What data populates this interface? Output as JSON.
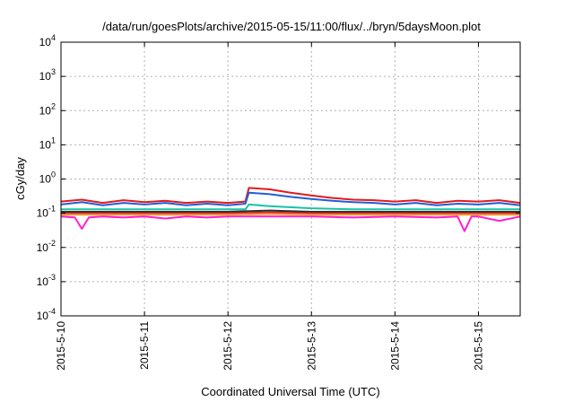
{
  "chart_data": {
    "type": "line",
    "title": "/data/run/goesPlots/archive/2015-05-15/11:00/flux/../bryn/5daysMoon.plot",
    "xlabel": "Coordinated Universal Time (UTC)",
    "ylabel": "cGy/day",
    "yscale": "log",
    "ylim": [
      0.0001,
      10000
    ],
    "xlim": [
      "2015-05-10",
      "2015-05-15 12:00"
    ],
    "grid": true,
    "legend": "none",
    "y_ticks": [
      {
        "mantissa": "10",
        "exp": "-4",
        "value": 0.0001
      },
      {
        "mantissa": "10",
        "exp": "-3",
        "value": 0.001
      },
      {
        "mantissa": "10",
        "exp": "-2",
        "value": 0.01
      },
      {
        "mantissa": "10",
        "exp": "-1",
        "value": 0.1
      },
      {
        "mantissa": "10",
        "exp": "0",
        "value": 1
      },
      {
        "mantissa": "10",
        "exp": "1",
        "value": 10
      },
      {
        "mantissa": "10",
        "exp": "2",
        "value": 100
      },
      {
        "mantissa": "10",
        "exp": "3",
        "value": 1000
      },
      {
        "mantissa": "10",
        "exp": "4",
        "value": 10000
      }
    ],
    "x_ticks": [
      "2015-5-10",
      "2015-5-11",
      "2015-5-12",
      "2015-5-13",
      "2015-5-14",
      "2015-5-15"
    ],
    "series": [
      {
        "color": "#e41a1c",
        "x": [
          "2015-05-10 00:00",
          "2015-05-10 06:00",
          "2015-05-10 12:00",
          "2015-05-10 18:00",
          "2015-05-11 00:00",
          "2015-05-11 06:00",
          "2015-05-11 12:00",
          "2015-05-11 18:00",
          "2015-05-12 00:00",
          "2015-05-12 05:00",
          "2015-05-12 06:00",
          "2015-05-12 12:00",
          "2015-05-12 18:00",
          "2015-05-13 00:00",
          "2015-05-13 06:00",
          "2015-05-13 12:00",
          "2015-05-13 18:00",
          "2015-05-14 00:00",
          "2015-05-14 06:00",
          "2015-05-14 12:00",
          "2015-05-14 18:00",
          "2015-05-15 00:00",
          "2015-05-15 06:00",
          "2015-05-15 12:00"
        ],
        "values": [
          0.22,
          0.25,
          0.2,
          0.24,
          0.21,
          0.23,
          0.2,
          0.22,
          0.2,
          0.22,
          0.55,
          0.5,
          0.4,
          0.33,
          0.28,
          0.25,
          0.24,
          0.22,
          0.24,
          0.2,
          0.23,
          0.22,
          0.24,
          0.2
        ]
      },
      {
        "color": "#1f5fd6",
        "x": [
          "2015-05-10 00:00",
          "2015-05-10 06:00",
          "2015-05-10 12:00",
          "2015-05-10 18:00",
          "2015-05-11 00:00",
          "2015-05-11 06:00",
          "2015-05-11 12:00",
          "2015-05-11 18:00",
          "2015-05-12 00:00",
          "2015-05-12 05:00",
          "2015-05-12 06:00",
          "2015-05-12 12:00",
          "2015-05-12 18:00",
          "2015-05-13 00:00",
          "2015-05-13 06:00",
          "2015-05-13 12:00",
          "2015-05-13 18:00",
          "2015-05-14 00:00",
          "2015-05-14 06:00",
          "2015-05-14 12:00",
          "2015-05-14 18:00",
          "2015-05-15 00:00",
          "2015-05-15 06:00",
          "2015-05-15 12:00"
        ],
        "values": [
          0.18,
          0.21,
          0.17,
          0.2,
          0.18,
          0.2,
          0.17,
          0.19,
          0.17,
          0.19,
          0.4,
          0.36,
          0.3,
          0.26,
          0.23,
          0.21,
          0.2,
          0.18,
          0.2,
          0.17,
          0.19,
          0.18,
          0.2,
          0.17
        ]
      },
      {
        "color": "#17c3a6",
        "x": [
          "2015-05-10 00:00",
          "2015-05-10 12:00",
          "2015-05-11 00:00",
          "2015-05-11 12:00",
          "2015-05-12 00:00",
          "2015-05-12 05:00",
          "2015-05-12 06:00",
          "2015-05-12 12:00",
          "2015-05-13 00:00",
          "2015-05-13 12:00",
          "2015-05-14 00:00",
          "2015-05-14 12:00",
          "2015-05-15 00:00",
          "2015-05-15 12:00"
        ],
        "values": [
          0.13,
          0.13,
          0.13,
          0.13,
          0.13,
          0.13,
          0.18,
          0.16,
          0.14,
          0.13,
          0.13,
          0.13,
          0.13,
          0.13
        ]
      },
      {
        "color": "#2b2b2b",
        "x": [
          "2015-05-10 00:00",
          "2015-05-10 12:00",
          "2015-05-11 00:00",
          "2015-05-11 12:00",
          "2015-05-12 00:00",
          "2015-05-12 12:00",
          "2015-05-13 00:00",
          "2015-05-13 12:00",
          "2015-05-14 00:00",
          "2015-05-14 12:00",
          "2015-05-15 00:00",
          "2015-05-15 12:00"
        ],
        "values": [
          0.11,
          0.11,
          0.11,
          0.11,
          0.11,
          0.12,
          0.11,
          0.11,
          0.11,
          0.11,
          0.11,
          0.11
        ]
      },
      {
        "color": "#d62728",
        "x": [
          "2015-05-10 00:00",
          "2015-05-10 12:00",
          "2015-05-11 00:00",
          "2015-05-11 12:00",
          "2015-05-12 00:00",
          "2015-05-12 12:00",
          "2015-05-13 00:00",
          "2015-05-13 12:00",
          "2015-05-14 00:00",
          "2015-05-14 12:00",
          "2015-05-15 00:00",
          "2015-05-15 12:00"
        ],
        "values": [
          0.1,
          0.1,
          0.1,
          0.1,
          0.1,
          0.105,
          0.1,
          0.1,
          0.1,
          0.1,
          0.1,
          0.1
        ]
      },
      {
        "color": "#f2a23a",
        "x": [
          "2015-05-10 00:00",
          "2015-05-10 12:00",
          "2015-05-11 00:00",
          "2015-05-11 12:00",
          "2015-05-12 00:00",
          "2015-05-12 12:00",
          "2015-05-13 00:00",
          "2015-05-13 12:00",
          "2015-05-14 00:00",
          "2015-05-14 12:00",
          "2015-05-15 00:00",
          "2015-05-15 12:00"
        ],
        "values": [
          0.09,
          0.09,
          0.09,
          0.09,
          0.09,
          0.095,
          0.09,
          0.09,
          0.09,
          0.09,
          0.09,
          0.09
        ]
      },
      {
        "color": "#ff1fd2",
        "x": [
          "2015-05-10 00:00",
          "2015-05-10 04:00",
          "2015-05-10 06:00",
          "2015-05-10 08:00",
          "2015-05-10 12:00",
          "2015-05-10 18:00",
          "2015-05-11 00:00",
          "2015-05-11 06:00",
          "2015-05-11 12:00",
          "2015-05-11 18:00",
          "2015-05-12 00:00",
          "2015-05-12 12:00",
          "2015-05-13 00:00",
          "2015-05-13 12:00",
          "2015-05-14 00:00",
          "2015-05-14 12:00",
          "2015-05-14 18:00",
          "2015-05-14 20:00",
          "2015-05-14 22:00",
          "2015-05-15 00:00",
          "2015-05-15 06:00",
          "2015-05-15 12:00"
        ],
        "values": [
          0.08,
          0.075,
          0.035,
          0.075,
          0.08,
          0.075,
          0.08,
          0.07,
          0.08,
          0.075,
          0.08,
          0.08,
          0.08,
          0.075,
          0.08,
          0.075,
          0.08,
          0.03,
          0.08,
          0.08,
          0.06,
          0.08
        ]
      }
    ]
  }
}
